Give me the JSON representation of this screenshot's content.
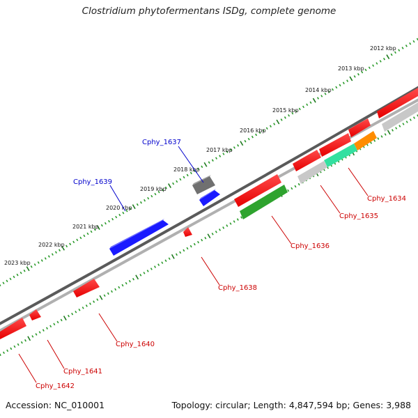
{
  "title": "Clostridium phytofermentans ISDg, complete genome",
  "footer": {
    "accession": "Accession: NC_010001",
    "topology": "Topology: circular; Length: 4,847,594 bp; Genes: 3,988"
  },
  "kbp_labels": [
    "2012 kbp",
    "2013 kbp",
    "2014 kbp",
    "2015 kbp",
    "2016 kbp",
    "2017 kbp",
    "2018 kbp",
    "2019 kbp",
    "2020 kbp",
    "2021 kbp",
    "2022 kbp",
    "2023 kbp"
  ],
  "gene_labels": {
    "forward": [
      "Cphy_1637",
      "Cphy_1639"
    ],
    "reverse": [
      "Cphy_1634",
      "Cphy_1635",
      "Cphy_1636",
      "Cphy_1638",
      "Cphy_1640",
      "Cphy_1641",
      "Cphy_1642"
    ]
  },
  "colors": {
    "backbone": "#8a8a8a",
    "ticks": "#2a8a2a",
    "forward_gene": "#1a1aff",
    "reverse_gene": "#ff1a1a",
    "label_forward": "#0000cc",
    "label_reverse": "#cc0000",
    "orange": "#ff8c00",
    "cyan": "#33e0a0",
    "green": "#2ea32e",
    "gray_gene": "#c0c0c0",
    "dark_gray_gene": "#707070"
  }
}
